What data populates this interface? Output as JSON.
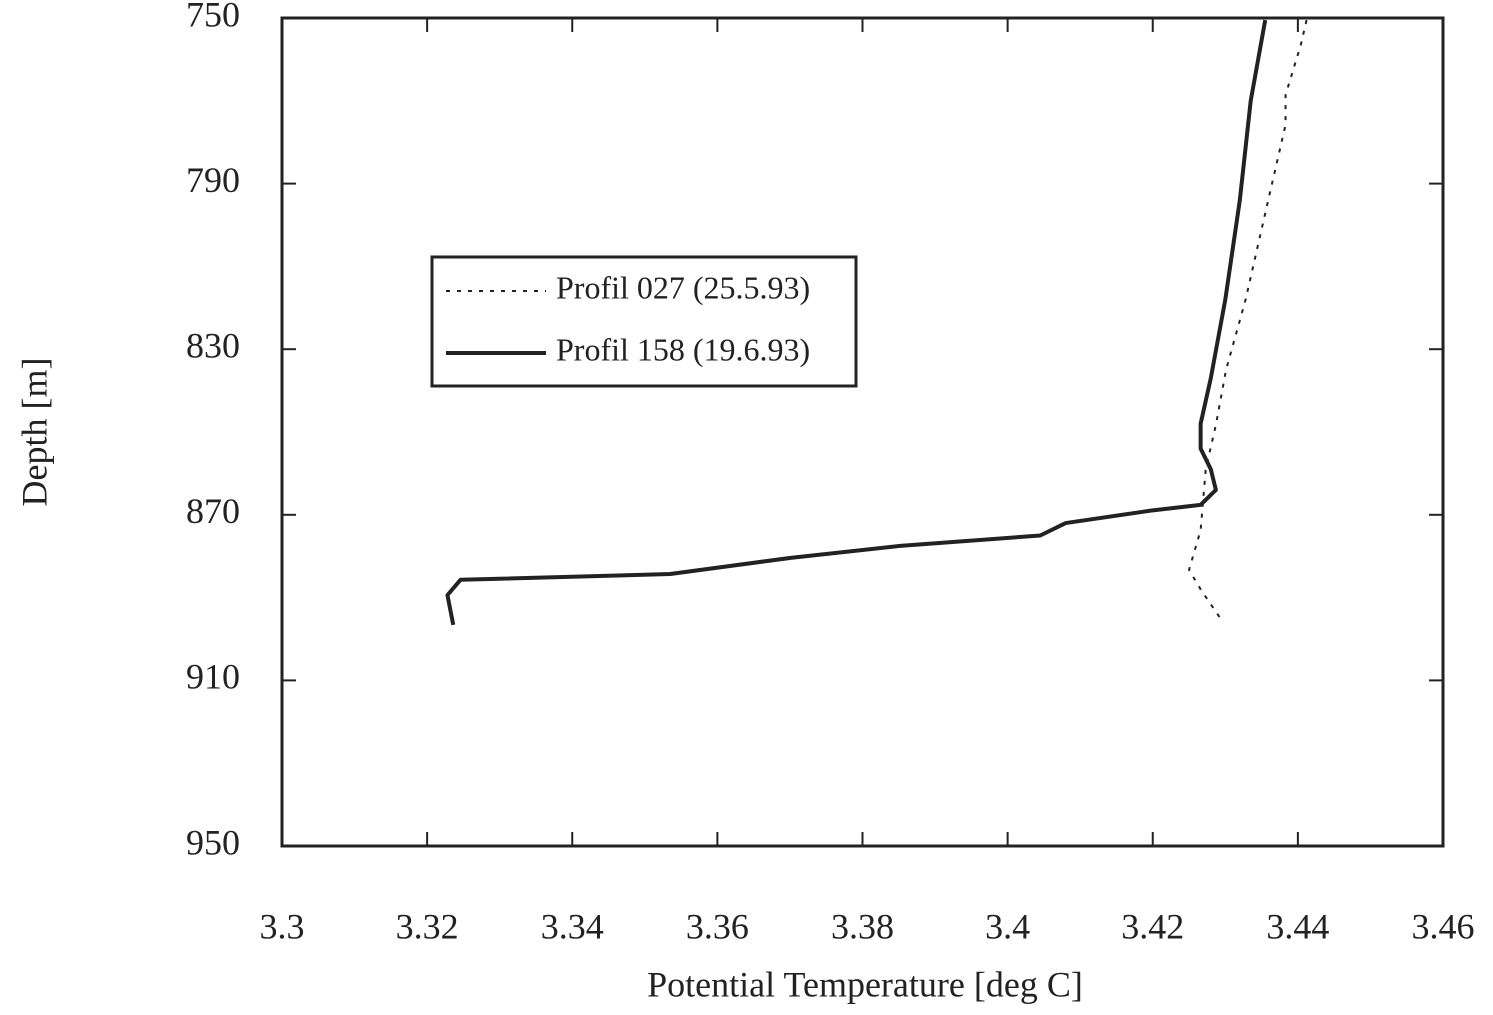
{
  "chart_data": {
    "type": "line",
    "xlabel": "Potential Temperature [deg C]",
    "ylabel": "Depth [m]",
    "xlim": [
      3.3,
      3.46
    ],
    "xticks": [
      3.3,
      3.32,
      3.34,
      3.36,
      3.38,
      3.4,
      3.42,
      3.44,
      3.46
    ],
    "ylim": [
      950,
      750
    ],
    "yticks": [
      750,
      790,
      830,
      870,
      910,
      950
    ],
    "legend": "upper left",
    "series": [
      {
        "name": "Profil 027 (25.5.93)",
        "color": "#222222",
        "style": "dotted",
        "x": [
          3.4412,
          3.4404,
          3.4383,
          3.4383,
          3.4356,
          3.4328,
          3.4301,
          3.4287,
          3.4273,
          3.4266,
          3.425,
          3.4266,
          3.4297
        ],
        "y": [
          750.5,
          756.5,
          768.6,
          775.8,
          796.4,
          818,
          835,
          848.3,
          859,
          873.7,
          883.3,
          888,
          896
        ]
      },
      {
        "name": "Profil 158 (19.6.93)",
        "color": "#222222",
        "style": "solid",
        "x": [
          3.4355,
          3.4335,
          3.432,
          3.43,
          3.428,
          3.4266,
          3.4266,
          3.428,
          3.4287,
          3.4266,
          3.4197,
          3.408,
          3.4045,
          3.3852,
          3.3701,
          3.3535,
          3.3246,
          3.3228,
          3.3236
        ],
        "y": [
          750.5,
          770,
          794,
          818,
          837,
          848,
          854,
          859,
          864,
          867.6,
          869,
          872,
          875,
          877.5,
          880.4,
          884.3,
          885.7,
          889.4,
          896.6
        ]
      }
    ]
  }
}
